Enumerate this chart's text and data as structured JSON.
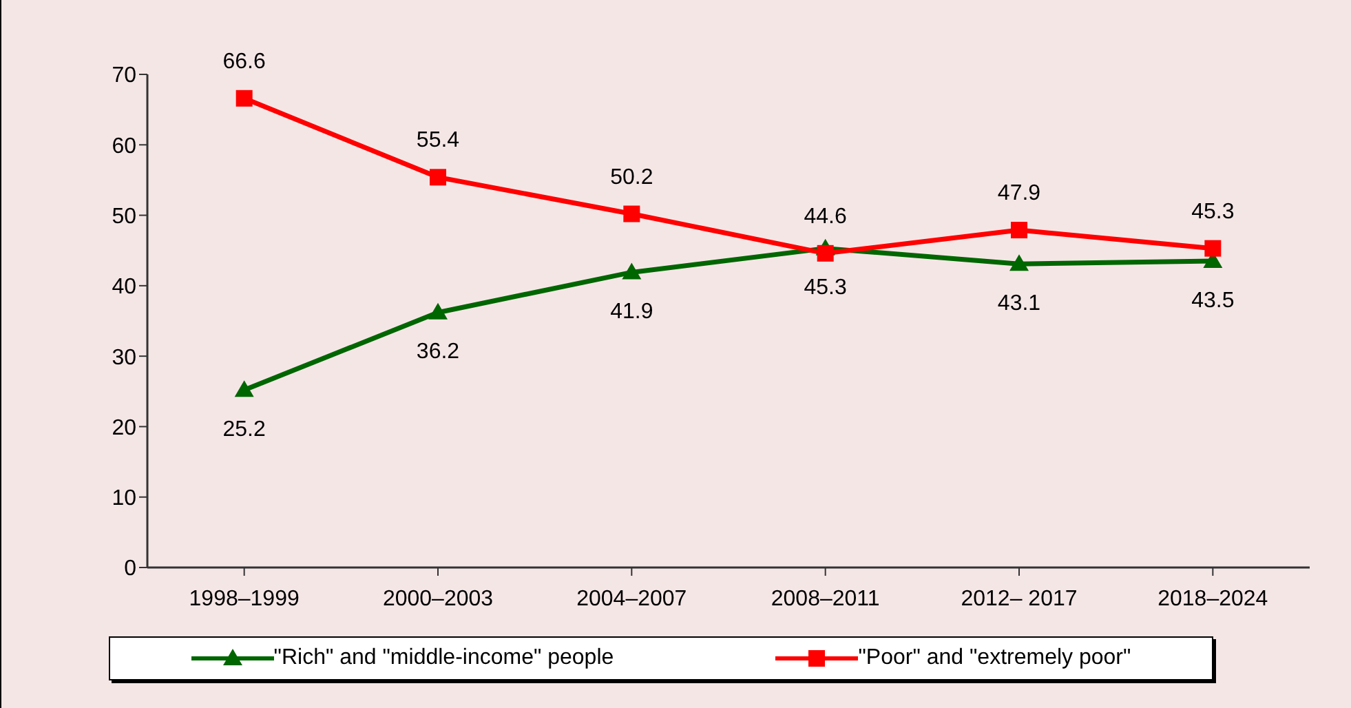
{
  "chart_data": {
    "type": "line",
    "categories": [
      "1998–1999",
      "2000–2003",
      "2004–2007",
      "2008–2011",
      "2012– 2017",
      "2018–2024"
    ],
    "series": [
      {
        "name": "\"Rich\" and \"middle-income\" people",
        "color": "#006600",
        "values": [
          25.2,
          36.2,
          41.9,
          45.3,
          43.1,
          43.5
        ],
        "marker": "triangle"
      },
      {
        "name": "\"Poor\" and \"extremely poor\"",
        "color": "#ff0000",
        "values": [
          66.6,
          55.4,
          50.2,
          44.6,
          47.9,
          45.3
        ],
        "marker": "square"
      }
    ],
    "ylim": [
      0,
      70
    ],
    "yticks": [
      0,
      10,
      20,
      30,
      40,
      50,
      60,
      70
    ],
    "grid": false,
    "legend": "bottom",
    "data_labels": true,
    "line_style": "solid"
  }
}
